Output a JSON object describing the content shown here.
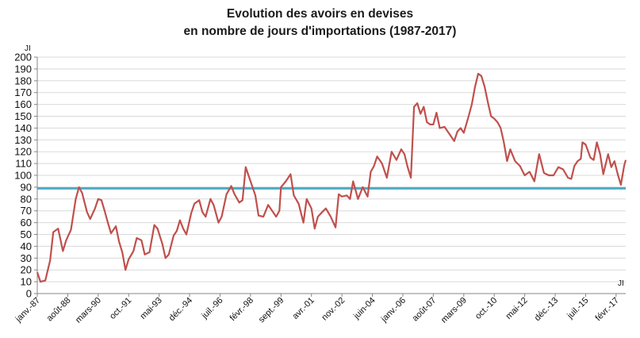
{
  "chart_data": {
    "type": "line",
    "title": "Evolution des avoirs en devises",
    "subtitle": "en nombre de jours d'importations (1987-2017)",
    "ylabel": "JI",
    "xlabel": "",
    "ylim": [
      0,
      200
    ],
    "yticks": [
      0,
      10,
      20,
      30,
      40,
      50,
      60,
      70,
      80,
      90,
      100,
      110,
      120,
      130,
      140,
      150,
      160,
      170,
      180,
      190,
      200
    ],
    "xlim": [
      "1987-01",
      "2017-08"
    ],
    "xtick_labels": [
      {
        "label": "janv.-87",
        "date": "1987-01"
      },
      {
        "label": "août-88",
        "date": "1988-08"
      },
      {
        "label": "mars-90",
        "date": "1990-03"
      },
      {
        "label": "oct.-91",
        "date": "1991-10"
      },
      {
        "label": "mai-93",
        "date": "1993-05"
      },
      {
        "label": "déc.-94",
        "date": "1994-12"
      },
      {
        "label": "juil.-96",
        "date": "1996-07"
      },
      {
        "label": "févr.-98",
        "date": "1998-02"
      },
      {
        "label": "sept.-99",
        "date": "1999-09"
      },
      {
        "label": "avr.-01",
        "date": "2001-04"
      },
      {
        "label": "nov.-02",
        "date": "2002-11"
      },
      {
        "label": "juin-04",
        "date": "2004-06"
      },
      {
        "label": "janv.-06",
        "date": "2006-01"
      },
      {
        "label": "août-07",
        "date": "2007-08"
      },
      {
        "label": "mars-09",
        "date": "2009-03"
      },
      {
        "label": "oct.-10",
        "date": "2010-10"
      },
      {
        "label": "mai-12",
        "date": "2012-05"
      },
      {
        "label": "déc.-13",
        "date": "2013-12"
      },
      {
        "label": "juil.-15",
        "date": "2015-07"
      },
      {
        "label": "févr.-17",
        "date": "2017-02"
      }
    ],
    "grid": true,
    "legend": "none",
    "colors": {
      "series": "#c0504d",
      "reference": "#4bacc6",
      "grid": "#d9d9d9",
      "axis": "#868686"
    },
    "reference_line": {
      "y": 89
    },
    "series": [
      {
        "points": [
          [
            "1987-01",
            18
          ],
          [
            "1987-03",
            10
          ],
          [
            "1987-06",
            11
          ],
          [
            "1987-09",
            28
          ],
          [
            "1987-11",
            52
          ],
          [
            "1988-02",
            55
          ],
          [
            "1988-05",
            36
          ],
          [
            "1988-07",
            45
          ],
          [
            "1988-10",
            54
          ],
          [
            "1989-01",
            80
          ],
          [
            "1989-03",
            90
          ],
          [
            "1989-05",
            85
          ],
          [
            "1989-08",
            69
          ],
          [
            "1989-10",
            63
          ],
          [
            "1990-01",
            72
          ],
          [
            "1990-03",
            80
          ],
          [
            "1990-05",
            79
          ],
          [
            "1990-07",
            70
          ],
          [
            "1990-09",
            60
          ],
          [
            "1990-11",
            51
          ],
          [
            "1991-02",
            57
          ],
          [
            "1991-04",
            44
          ],
          [
            "1991-06",
            35
          ],
          [
            "1991-08",
            20
          ],
          [
            "1991-10",
            29
          ],
          [
            "1992-01",
            36
          ],
          [
            "1992-03",
            47
          ],
          [
            "1992-06",
            45
          ],
          [
            "1992-08",
            33
          ],
          [
            "1992-11",
            35
          ],
          [
            "1993-02",
            58
          ],
          [
            "1993-04",
            55
          ],
          [
            "1993-07",
            42
          ],
          [
            "1993-09",
            30
          ],
          [
            "1993-11",
            33
          ],
          [
            "1994-02",
            49
          ],
          [
            "1994-04",
            53
          ],
          [
            "1994-06",
            62
          ],
          [
            "1994-08",
            55
          ],
          [
            "1994-10",
            50
          ],
          [
            "1995-01",
            68
          ],
          [
            "1995-03",
            76
          ],
          [
            "1995-06",
            79
          ],
          [
            "1995-08",
            69
          ],
          [
            "1995-10",
            65
          ],
          [
            "1996-01",
            80
          ],
          [
            "1996-03",
            75
          ],
          [
            "1996-06",
            60
          ],
          [
            "1996-08",
            65
          ],
          [
            "1996-11",
            84
          ],
          [
            "1997-02",
            91
          ],
          [
            "1997-04",
            84
          ],
          [
            "1997-07",
            77
          ],
          [
            "1997-09",
            79
          ],
          [
            "1997-11",
            107
          ],
          [
            "1998-02",
            95
          ],
          [
            "1998-05",
            83
          ],
          [
            "1998-07",
            66
          ],
          [
            "1998-10",
            65
          ],
          [
            "1999-01",
            75
          ],
          [
            "1999-03",
            71
          ],
          [
            "1999-06",
            65
          ],
          [
            "1999-08",
            70
          ],
          [
            "1999-09",
            90
          ],
          [
            "1999-12",
            95
          ],
          [
            "2000-03",
            101
          ],
          [
            "2000-05",
            83
          ],
          [
            "2000-08",
            76
          ],
          [
            "2000-11",
            60
          ],
          [
            "2001-01",
            80
          ],
          [
            "2001-04",
            72
          ],
          [
            "2001-06",
            55
          ],
          [
            "2001-08",
            65
          ],
          [
            "2001-10",
            68
          ],
          [
            "2002-01",
            72
          ],
          [
            "2002-04",
            65
          ],
          [
            "2002-07",
            56
          ],
          [
            "2002-09",
            84
          ],
          [
            "2002-11",
            82
          ],
          [
            "2003-02",
            83
          ],
          [
            "2003-04",
            80
          ],
          [
            "2003-06",
            95
          ],
          [
            "2003-09",
            80
          ],
          [
            "2003-12",
            90
          ],
          [
            "2004-03",
            82
          ],
          [
            "2004-05",
            103
          ],
          [
            "2004-07",
            108
          ],
          [
            "2004-09",
            116
          ],
          [
            "2004-12",
            110
          ],
          [
            "2005-03",
            98
          ],
          [
            "2005-06",
            120
          ],
          [
            "2005-09",
            113
          ],
          [
            "2005-12",
            122
          ],
          [
            "2006-02",
            118
          ],
          [
            "2006-04",
            107
          ],
          [
            "2006-06",
            98
          ],
          [
            "2006-08",
            158
          ],
          [
            "2006-10",
            161
          ],
          [
            "2006-12",
            152
          ],
          [
            "2007-02",
            158
          ],
          [
            "2007-04",
            145
          ],
          [
            "2007-06",
            143
          ],
          [
            "2007-08",
            143
          ],
          [
            "2007-10",
            153
          ],
          [
            "2007-12",
            140
          ],
          [
            "2008-03",
            141
          ],
          [
            "2008-06",
            135
          ],
          [
            "2008-09",
            129
          ],
          [
            "2008-11",
            137
          ],
          [
            "2009-01",
            140
          ],
          [
            "2009-03",
            136
          ],
          [
            "2009-06",
            150
          ],
          [
            "2009-08",
            160
          ],
          [
            "2009-10",
            175
          ],
          [
            "2009-12",
            186
          ],
          [
            "2010-02",
            184
          ],
          [
            "2010-04",
            175
          ],
          [
            "2010-06",
            162
          ],
          [
            "2010-08",
            150
          ],
          [
            "2010-10",
            148
          ],
          [
            "2010-12",
            145
          ],
          [
            "2011-02",
            140
          ],
          [
            "2011-04",
            128
          ],
          [
            "2011-06",
            112
          ],
          [
            "2011-08",
            122
          ],
          [
            "2011-11",
            112
          ],
          [
            "2012-02",
            108
          ],
          [
            "2012-05",
            100
          ],
          [
            "2012-08",
            103
          ],
          [
            "2012-11",
            95
          ],
          [
            "2013-02",
            118
          ],
          [
            "2013-05",
            102
          ],
          [
            "2013-08",
            100
          ],
          [
            "2013-11",
            100
          ],
          [
            "2014-02",
            107
          ],
          [
            "2014-05",
            105
          ],
          [
            "2014-08",
            98
          ],
          [
            "2014-10",
            97
          ],
          [
            "2014-12",
            108
          ],
          [
            "2015-02",
            112
          ],
          [
            "2015-04",
            114
          ],
          [
            "2015-05",
            128
          ],
          [
            "2015-07",
            126
          ],
          [
            "2015-10",
            115
          ],
          [
            "2015-12",
            113
          ],
          [
            "2016-02",
            128
          ],
          [
            "2016-04",
            118
          ],
          [
            "2016-06",
            101
          ],
          [
            "2016-09",
            118
          ],
          [
            "2016-11",
            107
          ],
          [
            "2017-01",
            112
          ],
          [
            "2017-03",
            101
          ],
          [
            "2017-05",
            92
          ],
          [
            "2017-07",
            108
          ],
          [
            "2017-08",
            113
          ]
        ]
      }
    ]
  }
}
